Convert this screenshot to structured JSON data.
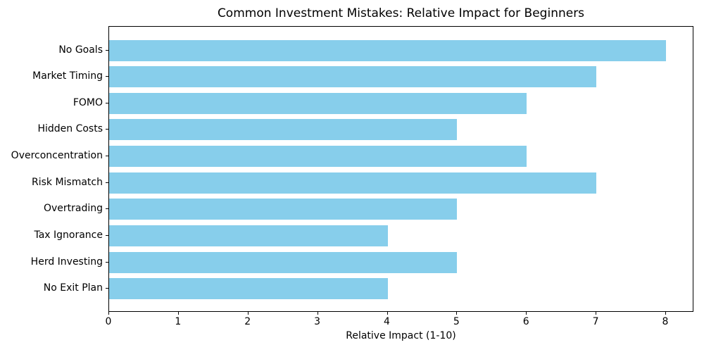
{
  "chart_data": {
    "type": "bar",
    "orientation": "horizontal",
    "title": "Common Investment Mistakes: Relative Impact for Beginners",
    "xlabel": "Relative Impact (1-10)",
    "ylabel": "",
    "categories": [
      "No Goals",
      "Market Timing",
      "FOMO",
      "Hidden Costs",
      "Overconcentration",
      "Risk Mismatch",
      "Overtrading",
      "Tax Ignorance",
      "Herd Investing",
      "No Exit Plan"
    ],
    "values": [
      8,
      7,
      6,
      5,
      6,
      7,
      5,
      4,
      5,
      4
    ],
    "xticks": [
      0,
      1,
      2,
      3,
      4,
      5,
      6,
      7,
      8
    ],
    "xlim": [
      0,
      8.4
    ],
    "bar_color": "#87CEEB",
    "axis_color": "#000000",
    "text_color": "#000000",
    "background_color": "#FFFFFF",
    "grid": false,
    "legend": null
  }
}
